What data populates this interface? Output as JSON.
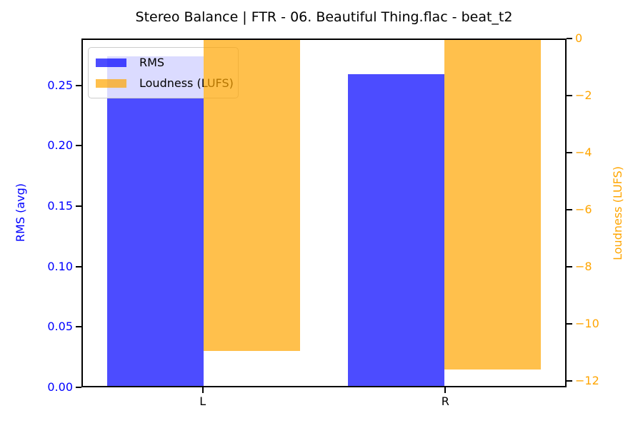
{
  "title": "Stereo Balance | FTR - 06. Beautiful Thing.flac - beat_t2",
  "chart_data": {
    "type": "bar",
    "categories": [
      "L",
      "R"
    ],
    "x_positions": [
      0,
      1
    ],
    "xlim": [
      -0.5,
      1.5
    ],
    "bar_width": 0.4,
    "bar_offset": 0.2,
    "grid": false,
    "background": "#ffffff",
    "series": [
      {
        "name": "RMS",
        "axis": "left",
        "color": "rgba(0,0,255,0.7)",
        "values": [
          0.275,
          0.26
        ]
      },
      {
        "name": "Loudness (LUFS)",
        "axis": "right",
        "color": "rgba(255,165,0,0.7)",
        "values": [
          -11.0,
          -11.65
        ]
      }
    ],
    "left_axis": {
      "label": "RMS (avg)",
      "color": "#0000ff",
      "ylim": [
        0,
        0.28875
      ],
      "ticks": [
        {
          "value": 0.0,
          "label": "0.00"
        },
        {
          "value": 0.05,
          "label": "0.05"
        },
        {
          "value": 0.1,
          "label": "0.10"
        },
        {
          "value": 0.15,
          "label": "0.15"
        },
        {
          "value": 0.2,
          "label": "0.20"
        },
        {
          "value": 0.25,
          "label": "0.25"
        }
      ]
    },
    "right_axis": {
      "label": "Loudness (LUFS)",
      "color": "#ffa500",
      "ylim": [
        -12.2325,
        0
      ],
      "ticks": [
        {
          "value": 0,
          "label": "0"
        },
        {
          "value": -2,
          "label": "−2"
        },
        {
          "value": -4,
          "label": "−4"
        },
        {
          "value": -6,
          "label": "−6"
        },
        {
          "value": -8,
          "label": "−8"
        },
        {
          "value": -10,
          "label": "−10"
        },
        {
          "value": -12,
          "label": "−12"
        }
      ]
    },
    "legend": {
      "position": "upper left",
      "entries": [
        "RMS",
        "Loudness (LUFS)"
      ]
    }
  }
}
